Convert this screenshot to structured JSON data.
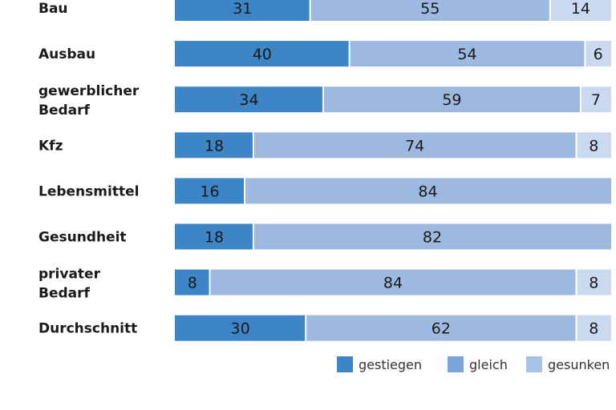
{
  "chart_data": {
    "type": "bar",
    "orientation": "horizontal",
    "stacked": true,
    "percent_stacked": true,
    "categories": [
      "Bau",
      "Ausbau",
      "gewerblicher Bedarf",
      "Kfz",
      "Lebensmittel",
      "Gesundheit",
      "privater Bedarf",
      "Durchschnitt"
    ],
    "series": [
      {
        "name": "gestiegen",
        "color": "#3d85c6",
        "values": [
          31,
          40,
          34,
          18,
          16,
          18,
          8,
          30
        ],
        "labels": [
          "31",
          "40",
          "34",
          "18",
          "16",
          "18",
          "8",
          "30"
        ]
      },
      {
        "name": "gleich",
        "color": "#9db9e0",
        "values": [
          55,
          54,
          59,
          74,
          84,
          82,
          84,
          62
        ],
        "labels": [
          "55",
          "54",
          "59",
          "74",
          "84",
          "82",
          "84",
          "62"
        ]
      },
      {
        "name": "gesunken",
        "color": "#c9d9f0",
        "values": [
          14,
          6,
          7,
          8,
          0,
          0,
          8,
          8
        ],
        "labels": [
          "14",
          "6",
          "7",
          "8",
          "",
          "",
          "8",
          "8"
        ]
      }
    ],
    "xlim": [
      0,
      100
    ],
    "grid": false,
    "legend_position": "bottom-right",
    "legend": [
      {
        "label": "gestiegen",
        "color": "#3d85c6"
      },
      {
        "label": "gleich",
        "color": "#7aa3d8"
      },
      {
        "label": "gesunken",
        "color": "#a8c1e6"
      }
    ]
  }
}
